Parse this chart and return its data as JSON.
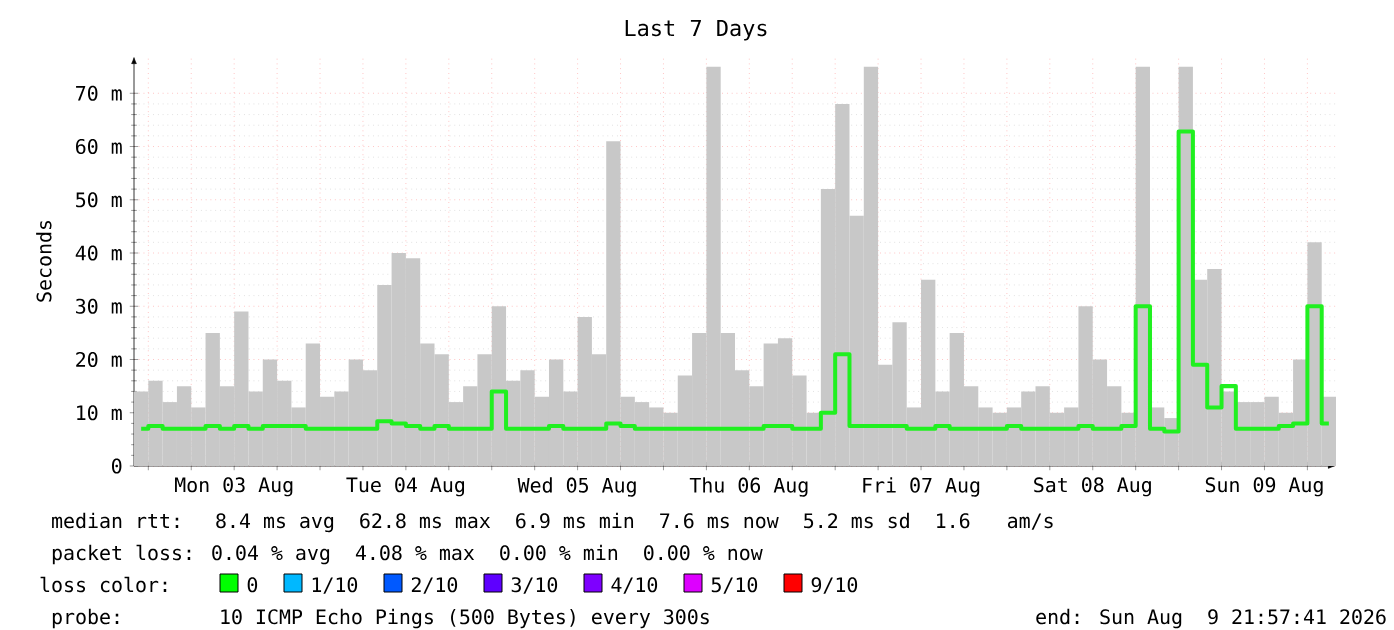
{
  "chart_data": {
    "type": "bar",
    "title": "Last 7 Days",
    "ylabel": "Seconds",
    "x": [
      "2026-08-02T23:00",
      "2026-08-03T01:00",
      "2026-08-03T03:00",
      "2026-08-03T05:00",
      "2026-08-03T07:00",
      "2026-08-03T09:00",
      "2026-08-03T11:00",
      "2026-08-03T13:00",
      "2026-08-03T15:00",
      "2026-08-03T17:00",
      "2026-08-03T19:00",
      "2026-08-03T21:00",
      "2026-08-03T23:00",
      "2026-08-04T01:00",
      "2026-08-04T03:00",
      "2026-08-04T05:00",
      "2026-08-04T07:00",
      "2026-08-04T09:00",
      "2026-08-04T11:00",
      "2026-08-04T13:00",
      "2026-08-04T15:00",
      "2026-08-04T17:00",
      "2026-08-04T19:00",
      "2026-08-04T21:00",
      "2026-08-04T23:00",
      "2026-08-05T01:00",
      "2026-08-05T03:00",
      "2026-08-05T05:00",
      "2026-08-05T07:00",
      "2026-08-05T09:00",
      "2026-08-05T11:00",
      "2026-08-05T13:00",
      "2026-08-05T15:00",
      "2026-08-05T17:00",
      "2026-08-05T19:00",
      "2026-08-05T21:00",
      "2026-08-05T23:00",
      "2026-08-06T01:00",
      "2026-08-06T03:00",
      "2026-08-06T05:00",
      "2026-08-06T07:00",
      "2026-08-06T09:00",
      "2026-08-06T11:00",
      "2026-08-06T13:00",
      "2026-08-06T15:00",
      "2026-08-06T17:00",
      "2026-08-06T19:00",
      "2026-08-06T21:00",
      "2026-08-06T23:00",
      "2026-08-07T01:00",
      "2026-08-07T03:00",
      "2026-08-07T05:00",
      "2026-08-07T07:00",
      "2026-08-07T09:00",
      "2026-08-07T11:00",
      "2026-08-07T13:00",
      "2026-08-07T15:00",
      "2026-08-07T17:00",
      "2026-08-07T19:00",
      "2026-08-07T21:00",
      "2026-08-07T23:00",
      "2026-08-08T01:00",
      "2026-08-08T03:00",
      "2026-08-08T05:00",
      "2026-08-08T07:00",
      "2026-08-08T09:00",
      "2026-08-08T11:00",
      "2026-08-08T13:00",
      "2026-08-08T15:00",
      "2026-08-08T17:00",
      "2026-08-08T19:00",
      "2026-08-08T21:00",
      "2026-08-08T23:00",
      "2026-08-09T01:00",
      "2026-08-09T03:00",
      "2026-08-09T05:00",
      "2026-08-09T07:00",
      "2026-08-09T09:00",
      "2026-08-09T11:00",
      "2026-08-09T13:00",
      "2026-08-09T15:00",
      "2026-08-09T17:00",
      "2026-08-09T19:00",
      "2026-08-09T21:00"
    ],
    "series": [
      {
        "color": "#c8c8c8",
        "values": [
          14,
          16,
          12,
          15,
          11,
          25,
          15,
          29,
          14,
          20,
          16,
          11,
          23,
          13,
          14,
          20,
          18,
          34,
          40,
          39,
          23,
          21,
          12,
          15,
          21,
          30,
          16,
          18,
          13,
          20,
          14,
          28,
          21,
          61,
          13,
          12,
          11,
          10,
          17,
          25,
          75,
          25,
          18,
          15,
          23,
          24,
          17,
          10,
          52,
          68,
          47,
          75,
          19,
          27,
          11,
          35,
          14,
          25,
          15,
          11,
          10,
          11,
          14,
          15,
          10,
          11,
          30,
          20,
          15,
          10,
          75,
          11,
          9,
          75,
          35,
          37,
          14,
          12,
          12,
          13,
          10,
          20,
          42,
          13
        ]
      },
      {
        "type": "step",
        "color": "#20f020",
        "values": [
          7,
          7.5,
          7,
          7,
          7,
          7.5,
          7,
          7.5,
          7,
          7.5,
          7.5,
          7.5,
          7,
          7,
          7,
          7,
          7,
          8.4,
          8,
          7.5,
          7,
          7.5,
          7,
          7,
          7,
          14,
          7,
          7,
          7,
          7.5,
          7,
          7,
          7,
          8,
          7.5,
          7,
          7,
          7,
          7,
          7,
          7,
          7,
          7,
          7,
          7.5,
          7.5,
          7,
          7,
          10,
          21,
          7.5,
          7.5,
          7.5,
          7.5,
          7,
          7,
          7.5,
          7,
          7,
          7,
          7,
          7.5,
          7,
          7,
          7,
          7,
          7.5,
          7,
          7,
          7.5,
          30,
          7,
          6.5,
          62.8,
          19,
          11,
          15,
          7,
          7,
          7,
          7.5,
          8,
          30,
          8
        ]
      }
    ],
    "xlim": [
      "2026-08-02T22:00",
      "2026-08-09T22:00"
    ],
    "ylim": [
      0,
      77
    ],
    "xticks": [
      {
        "value": "2026-08-03T00:00",
        "label": null
      },
      {
        "value": "2026-08-03T06:00",
        "label": null
      },
      {
        "value": "2026-08-03T12:00",
        "label": "Mon 03 Aug"
      },
      {
        "value": "2026-08-03T18:00",
        "label": null
      },
      {
        "value": "2026-08-04T00:00",
        "label": null
      },
      {
        "value": "2026-08-04T06:00",
        "label": null
      },
      {
        "value": "2026-08-04T12:00",
        "label": "Tue 04 Aug"
      },
      {
        "value": "2026-08-04T18:00",
        "label": null
      },
      {
        "value": "2026-08-05T00:00",
        "label": null
      },
      {
        "value": "2026-08-05T06:00",
        "label": null
      },
      {
        "value": "2026-08-05T12:00",
        "label": "Wed 05 Aug"
      },
      {
        "value": "2026-08-05T18:00",
        "label": null
      },
      {
        "value": "2026-08-06T00:00",
        "label": null
      },
      {
        "value": "2026-08-06T06:00",
        "label": null
      },
      {
        "value": "2026-08-06T12:00",
        "label": "Thu 06 Aug"
      },
      {
        "value": "2026-08-06T18:00",
        "label": null
      },
      {
        "value": "2026-08-07T00:00",
        "label": null
      },
      {
        "value": "2026-08-07T06:00",
        "label": null
      },
      {
        "value": "2026-08-07T12:00",
        "label": "Fri 07 Aug"
      },
      {
        "value": "2026-08-07T18:00",
        "label": null
      },
      {
        "value": "2026-08-08T00:00",
        "label": null
      },
      {
        "value": "2026-08-08T06:00",
        "label": null
      },
      {
        "value": "2026-08-08T12:00",
        "label": "Sat 08 Aug"
      },
      {
        "value": "2026-08-08T18:00",
        "label": null
      },
      {
        "value": "2026-08-09T00:00",
        "label": null
      },
      {
        "value": "2026-08-09T06:00",
        "label": null
      },
      {
        "value": "2026-08-09T12:00",
        "label": "Sun 09 Aug"
      },
      {
        "value": "2026-08-09T18:00",
        "label": null
      }
    ],
    "yticks": [
      0,
      {
        "value": 10,
        "label": "10 m"
      },
      {
        "value": 20,
        "label": "20 m"
      },
      {
        "value": 30,
        "label": "30 m"
      },
      {
        "value": 40,
        "label": "40 m"
      },
      {
        "value": 50,
        "label": "50 m"
      },
      {
        "value": 60,
        "label": "60 m"
      },
      {
        "value": 70,
        "label": "70 m"
      }
    ],
    "grid": true,
    "annotations": [
      "median rtt:  8.4 ms avg  62.8 ms max  6.9 ms min  7.6 ms now  5.2 ms sd  1.6   am/s",
      "packet loss: 0.04 % avg  4.08 % max  0.00 % min  0.00 % now",
      "loss color:",
      "0",
      "1/10",
      "2/10",
      "3/10",
      "4/10",
      "5/10",
      "9/10",
      "probe:      10 ICMP Echo Pings (500 Bytes) every 300s",
      "end: Sun Aug  9 21:57:41 2026"
    ]
  }
}
